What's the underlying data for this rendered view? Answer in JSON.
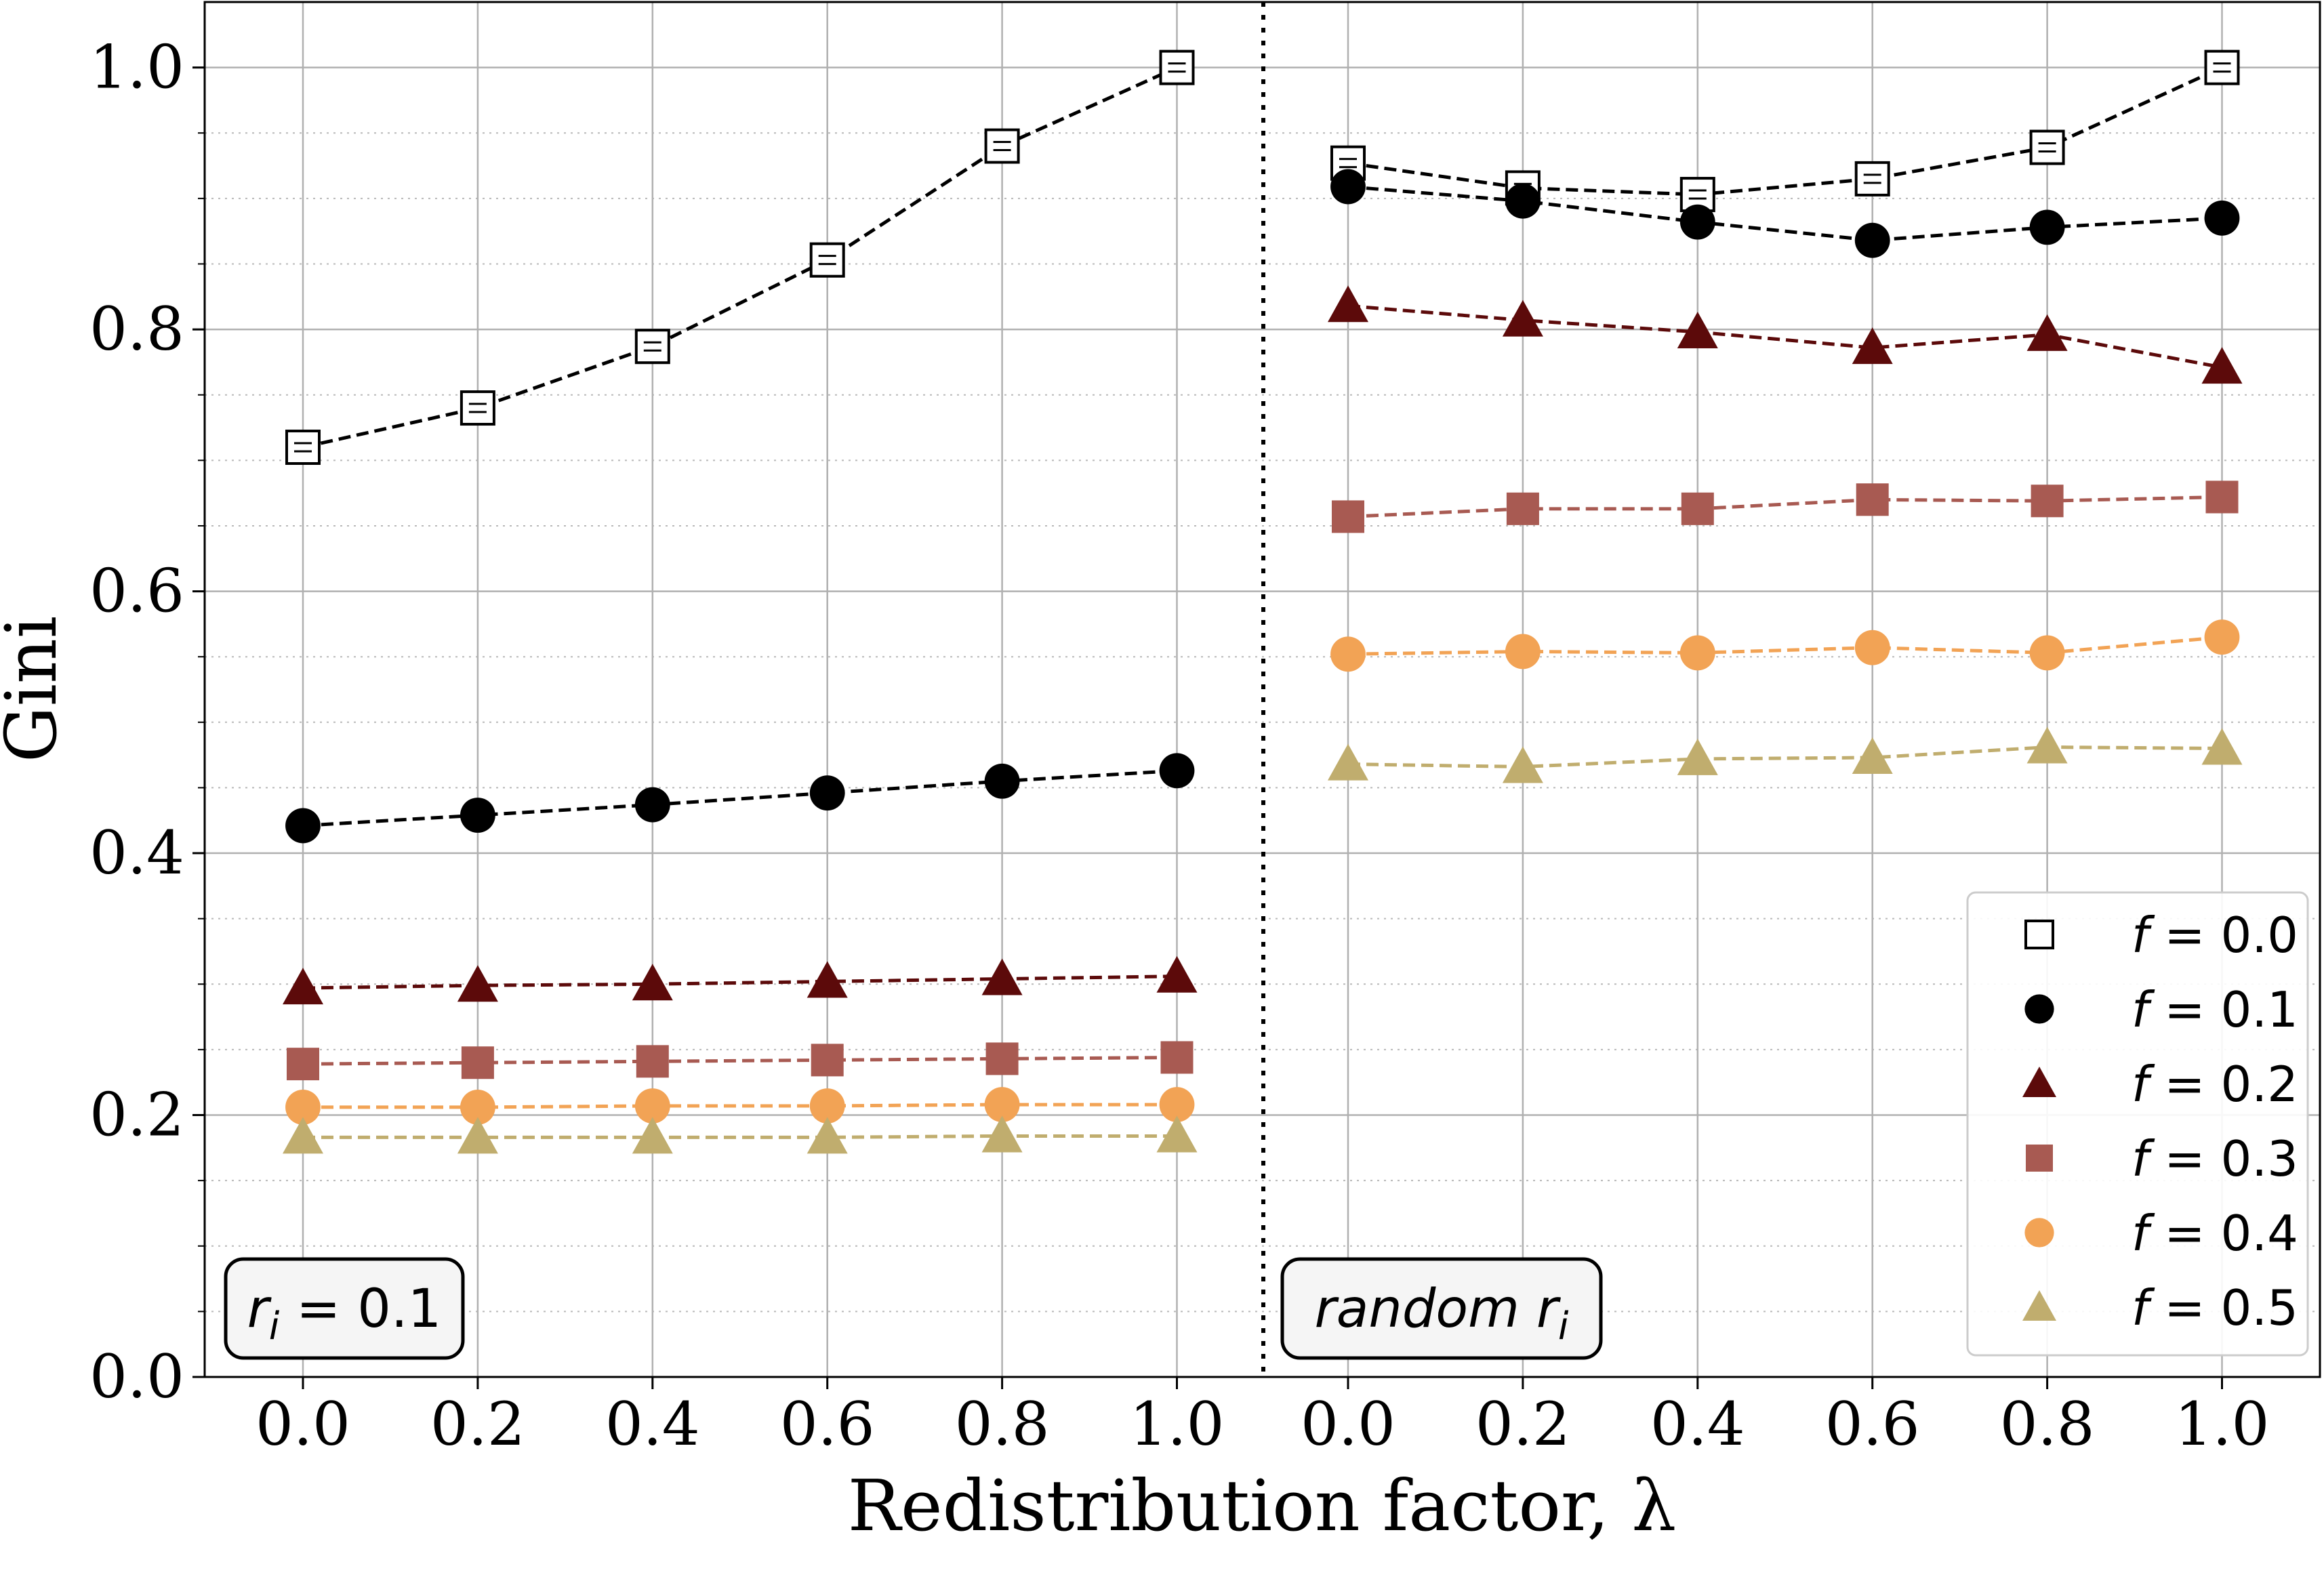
{
  "chart_data": {
    "type": "line",
    "ylabel": "Gini",
    "xlabel": "Redistribution factor, λ",
    "ylim": [
      0.0,
      1.05
    ],
    "y_ticks": [
      "0.0",
      "0.2",
      "0.4",
      "0.6",
      "0.8",
      "1.0"
    ],
    "y_tick_values": [
      0.0,
      0.2,
      0.4,
      0.6,
      0.8,
      1.0
    ],
    "y_minor_values": [
      0.05,
      0.1,
      0.15,
      0.25,
      0.3,
      0.35,
      0.45,
      0.5,
      0.55,
      0.65,
      0.7,
      0.75,
      0.85,
      0.9,
      0.95
    ],
    "grid": true,
    "legend_position": "bottom-right",
    "panels": [
      {
        "label_prefix": "r",
        "label_sub": "i",
        "label_suffix": " = 0.1",
        "x": [
          0.0,
          0.2,
          0.4,
          0.6,
          0.8,
          1.0
        ],
        "x_ticks": [
          "0.0",
          "0.2",
          "0.4",
          "0.6",
          "0.8",
          "1.0"
        ],
        "series": [
          {
            "name": "f = 0.0",
            "values": [
              0.71,
              0.74,
              0.787,
              0.853,
              0.94,
              1.0
            ]
          },
          {
            "name": "f = 0.1",
            "values": [
              0.421,
              0.429,
              0.437,
              0.446,
              0.455,
              0.463
            ]
          },
          {
            "name": "f = 0.2",
            "values": [
              0.297,
              0.299,
              0.3,
              0.302,
              0.304,
              0.306
            ]
          },
          {
            "name": "f = 0.3",
            "values": [
              0.239,
              0.24,
              0.241,
              0.242,
              0.243,
              0.244
            ]
          },
          {
            "name": "f = 0.4",
            "values": [
              0.206,
              0.206,
              0.207,
              0.207,
              0.208,
              0.208
            ]
          },
          {
            "name": "f = 0.5",
            "values": [
              0.183,
              0.183,
              0.183,
              0.183,
              0.184,
              0.184
            ]
          }
        ]
      },
      {
        "label_prefix": "random r",
        "label_sub": "i",
        "label_suffix": "",
        "x": [
          0.0,
          0.2,
          0.4,
          0.6,
          0.8,
          1.0
        ],
        "x_ticks": [
          "0.0",
          "0.2",
          "0.4",
          "0.6",
          "0.8",
          "1.0"
        ],
        "series": [
          {
            "name": "f = 0.0",
            "values": [
              0.927,
              0.908,
              0.903,
              0.915,
              0.939,
              1.0
            ]
          },
          {
            "name": "f = 0.1",
            "values": [
              0.909,
              0.898,
              0.882,
              0.868,
              0.878,
              0.885
            ]
          },
          {
            "name": "f = 0.2",
            "values": [
              0.818,
              0.807,
              0.798,
              0.786,
              0.796,
              0.771
            ]
          },
          {
            "name": "f = 0.3",
            "values": [
              0.657,
              0.663,
              0.663,
              0.67,
              0.669,
              0.672
            ]
          },
          {
            "name": "f = 0.4",
            "values": [
              0.552,
              0.554,
              0.553,
              0.557,
              0.553,
              0.565
            ]
          },
          {
            "name": "f = 0.5",
            "values": [
              0.468,
              0.466,
              0.472,
              0.473,
              0.481,
              0.48
            ]
          }
        ]
      }
    ],
    "legend": [
      {
        "var": "f",
        "rest": " = 0.0",
        "marker": "open-square",
        "color": "#000000"
      },
      {
        "var": "f",
        "rest": " = 0.1",
        "marker": "circle",
        "color": "#000000"
      },
      {
        "var": "f",
        "rest": " = 0.2",
        "marker": "triangle",
        "color": "#5c0a0a"
      },
      {
        "var": "f",
        "rest": " = 0.3",
        "marker": "square",
        "color": "#a85a52"
      },
      {
        "var": "f",
        "rest": " = 0.4",
        "marker": "circle",
        "color": "#f2a355"
      },
      {
        "var": "f",
        "rest": " = 0.5",
        "marker": "triangle",
        "color": "#c0ad6e"
      }
    ]
  }
}
